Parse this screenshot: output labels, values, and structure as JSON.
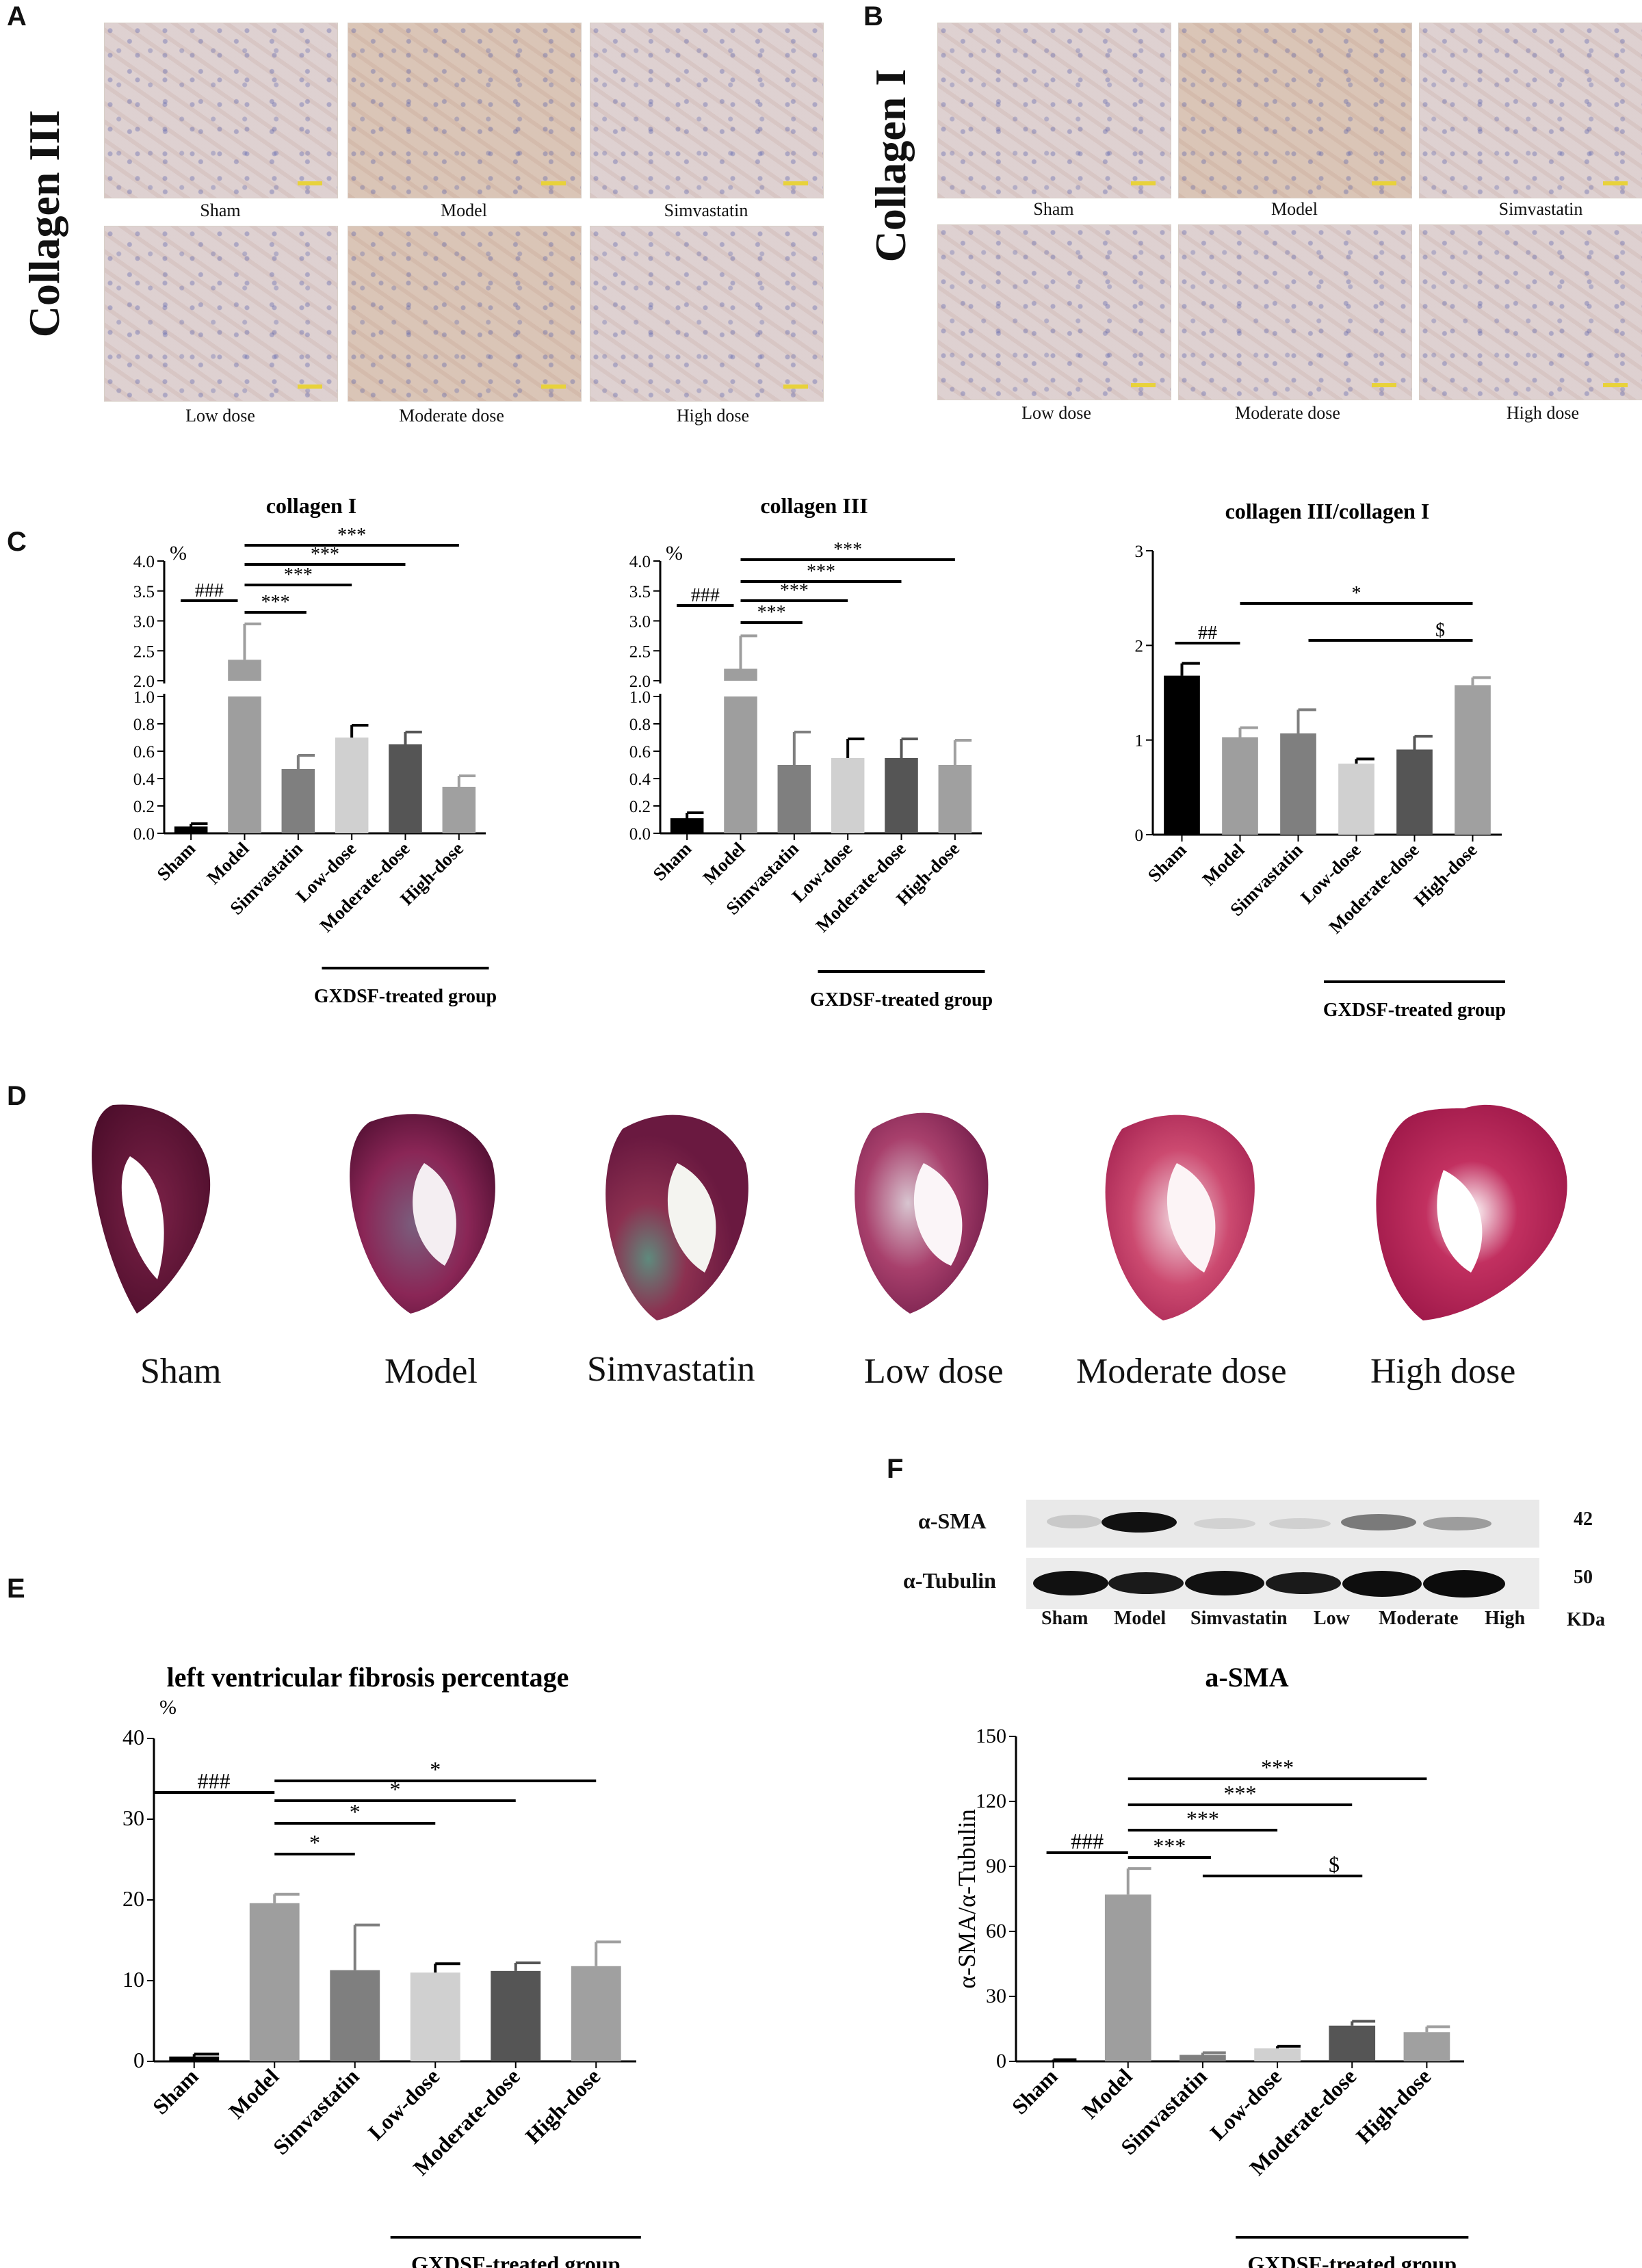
{
  "panels": {
    "A": "A",
    "B": "B",
    "C": "C",
    "D": "D",
    "E": "E",
    "F": "F"
  },
  "panelA": {
    "side_label": "Collagen III",
    "captions": [
      "Sham",
      "Model",
      "Simvastatin",
      "Low dose",
      "Moderate dose",
      "High dose"
    ]
  },
  "panelB": {
    "side_label": "Collagen I",
    "captions": [
      "Sham",
      "Model",
      "Simvastatin",
      "Low dose",
      "Moderate dose",
      "High dose"
    ]
  },
  "panelD": {
    "captions": [
      "Sham",
      "Model",
      "Simvastatin",
      "Low dose",
      "Moderate dose",
      "High dose"
    ]
  },
  "panelF_blot": {
    "rows": [
      "α-SMA",
      "α-Tubulin"
    ],
    "sizes": [
      "42",
      "50"
    ],
    "lanes": [
      "Sham",
      "Model",
      "Simvastatin",
      "Low",
      "Moderate",
      "High"
    ],
    "unit": "KDa"
  },
  "colors": {
    "sham": "#000000",
    "model": "#9e9e9e",
    "simvastatin": "#7f7f7f",
    "low": "#d0d0d0",
    "moderate": "#555555",
    "high": "#a0a0a0"
  },
  "chart_data": [
    {
      "id": "c1",
      "type": "bar",
      "title": "collagen I",
      "ylabel": "%",
      "categories": [
        "Sham",
        "Model",
        "Simvastatin",
        "Low-dose",
        "Moderate-dose",
        "High-dose"
      ],
      "values": [
        0.05,
        2.35,
        0.47,
        0.7,
        0.65,
        0.34
      ],
      "errors": [
        0.02,
        0.6,
        0.1,
        0.09,
        0.09,
        0.08
      ],
      "broken_axis": true,
      "yticks_lower": [
        "0.0",
        "0.2",
        "0.4",
        "0.6",
        "0.8",
        "1.0"
      ],
      "yticks_upper": [
        "2.0",
        "2.5",
        "3.0",
        "3.5",
        "4.0"
      ],
      "annotations": [
        "###",
        "***",
        "***",
        "***",
        "***"
      ],
      "group_label": "GXDSF-treated group"
    },
    {
      "id": "c2",
      "type": "bar",
      "title": "collagen III",
      "ylabel": "%",
      "categories": [
        "Sham",
        "Model",
        "Simvastatin",
        "Low-dose",
        "Moderate-dose",
        "High-dose"
      ],
      "values": [
        0.11,
        2.2,
        0.5,
        0.55,
        0.55,
        0.5
      ],
      "errors": [
        0.04,
        0.55,
        0.24,
        0.14,
        0.14,
        0.18
      ],
      "broken_axis": true,
      "yticks_lower": [
        "0.0",
        "0.2",
        "0.4",
        "0.6",
        "0.8",
        "1.0"
      ],
      "yticks_upper": [
        "2.0",
        "2.5",
        "3.0",
        "3.5",
        "4.0"
      ],
      "annotations": [
        "###",
        "***",
        "***",
        "***",
        "***"
      ],
      "group_label": "GXDSF-treated group"
    },
    {
      "id": "c3",
      "type": "bar",
      "title": "collagen III/collagen I",
      "ylabel": "",
      "categories": [
        "Sham",
        "Model",
        "Simvastatin",
        "Low-dose",
        "Moderate-dose",
        "High-dose"
      ],
      "values": [
        1.68,
        1.03,
        1.07,
        0.75,
        0.9,
        1.58
      ],
      "errors": [
        0.13,
        0.1,
        0.25,
        0.05,
        0.14,
        0.08
      ],
      "ylim": [
        0,
        3
      ],
      "yticks": [
        "0",
        "1",
        "2",
        "3"
      ],
      "annotations": [
        "##",
        "*",
        "$"
      ],
      "group_label": "GXDSF-treated group"
    },
    {
      "id": "e",
      "type": "bar",
      "title": "left ventricular fibrosis percentage",
      "ylabel": "%",
      "categories": [
        "Sham",
        "Model",
        "Simvastatin",
        "Low-dose",
        "Moderate-dose",
        "High-dose"
      ],
      "values": [
        0.6,
        19.6,
        11.3,
        11.0,
        11.2,
        11.8
      ],
      "errors": [
        0.3,
        1.1,
        5.6,
        1.1,
        1.0,
        3.0
      ],
      "ylim": [
        0,
        40
      ],
      "yticks": [
        "0",
        "10",
        "20",
        "30",
        "40"
      ],
      "annotations": [
        "###",
        "*",
        "*",
        "*",
        "*"
      ],
      "group_label": "GXDSF-treated group"
    },
    {
      "id": "f",
      "type": "bar",
      "title": "a-SMA",
      "ylabel": "α-SMA/α-Tubulin",
      "categories": [
        "Sham",
        "Model",
        "Simvastatin",
        "Low-dose",
        "Moderate-dose",
        "High-dose"
      ],
      "values": [
        0.5,
        77,
        3,
        6,
        16.5,
        13.5
      ],
      "errors": [
        0.3,
        12,
        1,
        1,
        2,
        2.5
      ],
      "ylim": [
        0,
        150
      ],
      "yticks": [
        "0",
        "30",
        "60",
        "90",
        "120",
        "150"
      ],
      "annotations": [
        "###",
        "***",
        "***",
        "***",
        "***",
        "$"
      ],
      "group_label": "GXDSF-treated group"
    }
  ]
}
